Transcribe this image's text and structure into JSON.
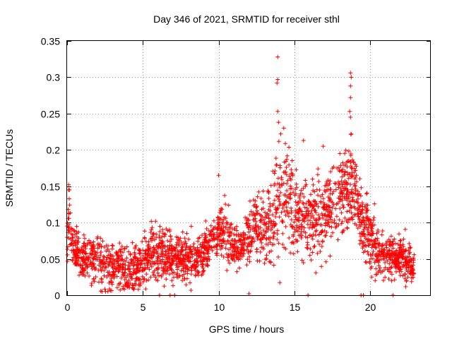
{
  "chart_data": {
    "type": "scatter",
    "title": "Day 346 of 2021, SRMTID for receiver sthl",
    "xlabel": "GPS time / hours",
    "ylabel": "SRMTID / TECUs",
    "xlim": [
      0,
      24
    ],
    "ylim": [
      0,
      0.35
    ],
    "xticks": [
      0,
      5,
      10,
      15,
      20
    ],
    "xtick_labels": [
      "0",
      "5",
      "10",
      "15",
      "20"
    ],
    "yticks": [
      0,
      0.05,
      0.1,
      0.15,
      0.2,
      0.25,
      0.3,
      0.35
    ],
    "ytick_labels": [
      "0",
      "0.05",
      "0.1",
      "0.15",
      "0.2",
      "0.25",
      "0.3",
      "0.35"
    ],
    "grid": true,
    "marker": "plus",
    "color": "#ff0000",
    "series": [
      {
        "name": "SRMTID",
        "profile": {
          "hours": [
            0,
            0.1,
            0.2,
            0.5,
            1.0,
            1.5,
            2.0,
            2.5,
            3.0,
            3.5,
            4.0,
            4.5,
            5.0,
            5.5,
            6.0,
            6.5,
            7.0,
            7.5,
            8.0,
            8.5,
            9.0,
            9.5,
            10.0,
            10.5,
            11.0,
            11.5,
            12.0,
            12.5,
            13.0,
            13.5,
            14.0,
            14.5,
            15.0,
            15.5,
            16.0,
            16.5,
            17.0,
            17.5,
            18.0,
            18.5,
            19.0,
            19.5,
            20.0,
            20.5,
            21.0,
            21.5,
            22.0,
            22.5,
            22.9
          ],
          "median": [
            0.08,
            0.12,
            0.08,
            0.06,
            0.05,
            0.05,
            0.05,
            0.04,
            0.04,
            0.04,
            0.035,
            0.035,
            0.045,
            0.06,
            0.06,
            0.05,
            0.055,
            0.055,
            0.05,
            0.05,
            0.06,
            0.075,
            0.09,
            0.085,
            0.07,
            0.065,
            0.08,
            0.095,
            0.09,
            0.1,
            0.13,
            0.14,
            0.12,
            0.11,
            0.1,
            0.11,
            0.11,
            0.12,
            0.15,
            0.14,
            0.15,
            0.1,
            0.08,
            0.06,
            0.055,
            0.055,
            0.05,
            0.045,
            0.04
          ],
          "spread": [
            0.03,
            0.03,
            0.02,
            0.02,
            0.02,
            0.02,
            0.025,
            0.025,
            0.025,
            0.025,
            0.02,
            0.02,
            0.02,
            0.025,
            0.025,
            0.025,
            0.02,
            0.02,
            0.02,
            0.02,
            0.02,
            0.02,
            0.025,
            0.025,
            0.02,
            0.02,
            0.025,
            0.03,
            0.03,
            0.04,
            0.05,
            0.045,
            0.04,
            0.035,
            0.035,
            0.04,
            0.04,
            0.04,
            0.04,
            0.04,
            0.035,
            0.03,
            0.03,
            0.025,
            0.02,
            0.02,
            0.02,
            0.02,
            0.015
          ],
          "points_per_hour": 110
        },
        "extra_points": [
          {
            "x": 13.9,
            "y": 0.328
          },
          {
            "x": 13.9,
            "y": 0.297
          },
          {
            "x": 13.85,
            "y": 0.292
          },
          {
            "x": 13.9,
            "y": 0.253
          },
          {
            "x": 13.95,
            "y": 0.238
          },
          {
            "x": 14.1,
            "y": 0.222
          },
          {
            "x": 14.3,
            "y": 0.23
          },
          {
            "x": 15.6,
            "y": 0.213
          },
          {
            "x": 18.7,
            "y": 0.306
          },
          {
            "x": 18.75,
            "y": 0.3
          },
          {
            "x": 18.7,
            "y": 0.288
          },
          {
            "x": 18.7,
            "y": 0.272
          },
          {
            "x": 18.65,
            "y": 0.253
          },
          {
            "x": 18.7,
            "y": 0.245
          },
          {
            "x": 18.75,
            "y": 0.222
          },
          {
            "x": 0.1,
            "y": 0.152
          },
          {
            "x": 0.15,
            "y": 0.145
          },
          {
            "x": 10.0,
            "y": 0.165
          },
          {
            "x": 16.9,
            "y": 0.205
          },
          {
            "x": 18.0,
            "y": 0.195
          },
          {
            "x": 6.8,
            "y": 0.0
          },
          {
            "x": 7.1,
            "y": 0.0
          },
          {
            "x": 12.0,
            "y": 0.002
          },
          {
            "x": 15.9,
            "y": 0.0
          },
          {
            "x": 19.4,
            "y": 0.0
          },
          {
            "x": 19.55,
            "y": 0.0
          },
          {
            "x": 21.5,
            "y": 0.0
          },
          {
            "x": 6.1,
            "y": 0.0
          },
          {
            "x": 2.3,
            "y": 0.005
          },
          {
            "x": 20.1,
            "y": 0.025
          },
          {
            "x": 22.4,
            "y": 0.02
          }
        ]
      }
    ]
  }
}
